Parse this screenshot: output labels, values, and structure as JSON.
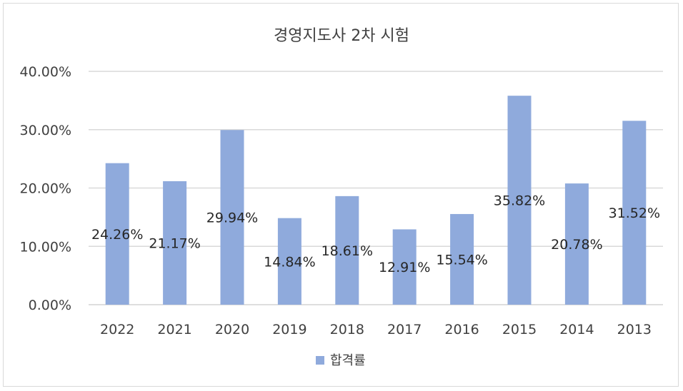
{
  "chart_data": {
    "type": "bar",
    "title": "경영지도사 2차 시험",
    "categories": [
      "2022",
      "2021",
      "2020",
      "2019",
      "2018",
      "2017",
      "2016",
      "2015",
      "2014",
      "2013"
    ],
    "series": [
      {
        "name": "합격률",
        "values": [
          24.26,
          21.17,
          29.94,
          14.84,
          18.61,
          12.91,
          15.54,
          35.82,
          20.78,
          31.52
        ],
        "labels": [
          "24.26%",
          "21.17%",
          "29.94%",
          "14.84%",
          "18.61%",
          "12.91%",
          "15.54%",
          "35.82%",
          "20.78%",
          "31.52%"
        ],
        "color": "#8faadc"
      }
    ],
    "ylim": [
      0,
      40
    ],
    "yticks": [
      "0.00%",
      "10.00%",
      "20.00%",
      "30.00%",
      "40.00%"
    ],
    "ytick_values": [
      0,
      10,
      20,
      30,
      40
    ],
    "grid": true,
    "legend_position": "bottom"
  },
  "colors": {
    "bar": "#8faadc",
    "grid": "#d9d9d9",
    "text": "#404040",
    "label": "#262626"
  }
}
